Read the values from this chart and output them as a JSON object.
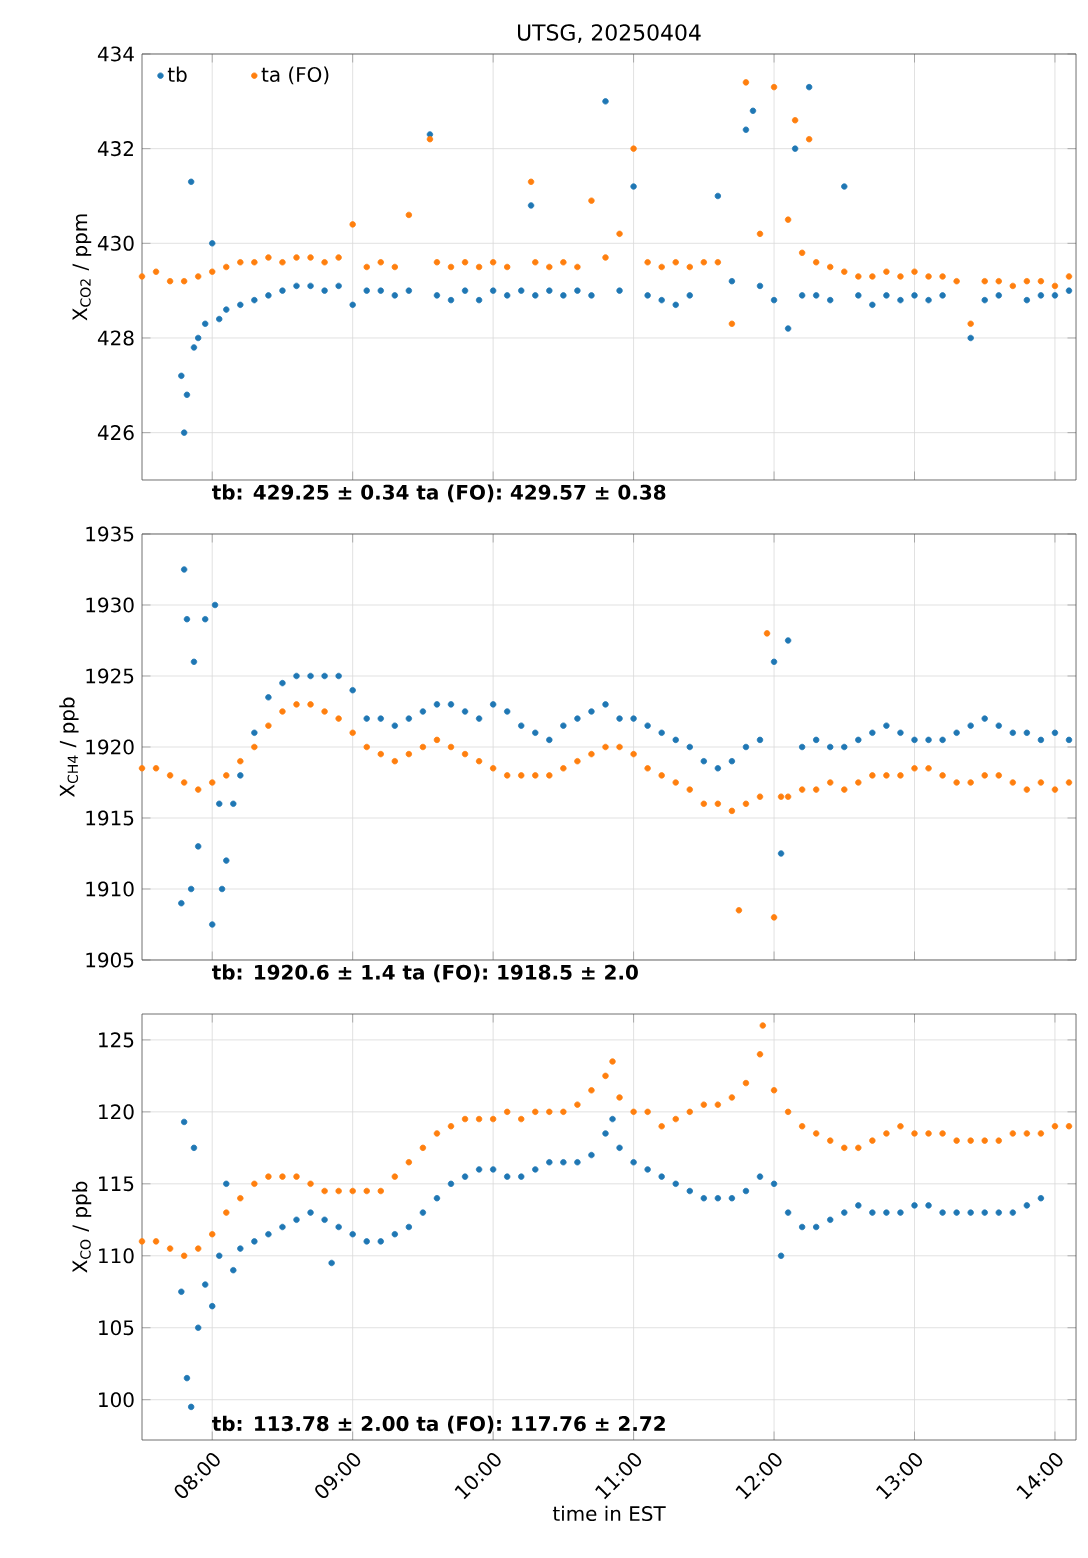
{
  "chart_data": [
    {
      "type": "scatter",
      "title": "UTSG, 20250404",
      "ylabel": "X$_{CO2}$ / ppm",
      "xlim": [
        7.5,
        14.15
      ],
      "ylim": [
        425,
        434
      ],
      "xticks": [
        {
          "value": 8,
          "label": null
        },
        {
          "value": 9,
          "label": null
        },
        {
          "value": 10,
          "label": null
        },
        {
          "value": 11,
          "label": null
        },
        {
          "value": 12,
          "label": null
        },
        {
          "value": 13,
          "label": null
        },
        {
          "value": 14,
          "label": null
        }
      ],
      "yticks": [
        426,
        428,
        430,
        432,
        434
      ],
      "tick_labels": "y",
      "grid": true,
      "legend": "top left",
      "marker": "circle",
      "annotations": [
        "tb: 429.25 ± 0.34   ta (FO): 429.57 ± 0.38"
      ],
      "series": [
        {
          "name": "tb",
          "color": "#1f77b4",
          "x": [
            7.78,
            7.8,
            7.82,
            7.85,
            7.87,
            7.9,
            7.95,
            8.0,
            8.05,
            8.1,
            8.2,
            8.3,
            8.4,
            8.5,
            8.6,
            8.7,
            8.8,
            8.9,
            9.0,
            9.1,
            9.2,
            9.3,
            9.4,
            9.55,
            9.6,
            9.7,
            9.8,
            9.9,
            10.0,
            10.1,
            10.2,
            10.27,
            10.3,
            10.4,
            10.5,
            10.6,
            10.7,
            10.8,
            10.9,
            11.0,
            11.1,
            11.2,
            11.3,
            11.4,
            11.6,
            11.7,
            11.8,
            11.85,
            11.9,
            12.0,
            12.1,
            12.15,
            12.2,
            12.25,
            12.3,
            12.4,
            12.5,
            12.6,
            12.7,
            12.8,
            12.9,
            13.0,
            13.1,
            13.2,
            13.4,
            13.5,
            13.6,
            13.8,
            13.9,
            14.0,
            14.1
          ],
          "values": [
            427.2,
            426.0,
            426.8,
            431.3,
            427.8,
            428.0,
            428.3,
            430.0,
            428.4,
            428.6,
            428.7,
            428.8,
            428.9,
            429.0,
            429.1,
            429.1,
            429.0,
            429.1,
            428.7,
            429.0,
            429.0,
            428.9,
            429.0,
            432.3,
            428.9,
            428.8,
            429.0,
            428.8,
            429.0,
            428.9,
            429.0,
            430.8,
            428.9,
            429.0,
            428.9,
            429.0,
            428.9,
            433.0,
            429.0,
            431.2,
            428.9,
            428.8,
            428.7,
            428.9,
            431.0,
            429.2,
            432.4,
            432.8,
            429.1,
            428.8,
            428.2,
            432.0,
            428.9,
            433.3,
            428.9,
            428.8,
            431.2,
            428.9,
            428.7,
            428.9,
            428.8,
            428.9,
            428.8,
            428.9,
            428.0,
            428.8,
            428.9,
            428.8,
            428.9,
            428.9,
            429.0
          ]
        },
        {
          "name": "ta (FO)",
          "color": "#ff7f0e",
          "x": [
            7.5,
            7.6,
            7.7,
            7.8,
            7.9,
            8.0,
            8.1,
            8.2,
            8.3,
            8.4,
            8.5,
            8.6,
            8.7,
            8.8,
            8.9,
            9.0,
            9.1,
            9.2,
            9.3,
            9.4,
            9.55,
            9.6,
            9.7,
            9.8,
            9.9,
            10.0,
            10.1,
            10.27,
            10.3,
            10.4,
            10.5,
            10.6,
            10.7,
            10.8,
            10.9,
            11.0,
            11.1,
            11.2,
            11.3,
            11.4,
            11.5,
            11.6,
            11.7,
            11.8,
            11.9,
            12.0,
            12.1,
            12.15,
            12.2,
            12.25,
            12.3,
            12.4,
            12.5,
            12.6,
            12.7,
            12.8,
            12.9,
            13.0,
            13.1,
            13.2,
            13.3,
            13.4,
            13.5,
            13.6,
            13.7,
            13.8,
            13.9,
            14.0,
            14.1
          ],
          "values": [
            429.3,
            429.4,
            429.2,
            429.2,
            429.3,
            429.4,
            429.5,
            429.6,
            429.6,
            429.7,
            429.6,
            429.7,
            429.7,
            429.6,
            429.7,
            430.4,
            429.5,
            429.6,
            429.5,
            430.6,
            432.2,
            429.6,
            429.5,
            429.6,
            429.5,
            429.6,
            429.5,
            431.3,
            429.6,
            429.5,
            429.6,
            429.5,
            430.9,
            429.7,
            430.2,
            432.0,
            429.6,
            429.5,
            429.6,
            429.5,
            429.6,
            429.6,
            428.3,
            433.4,
            430.2,
            433.3,
            430.5,
            432.6,
            429.8,
            432.2,
            429.6,
            429.5,
            429.4,
            429.3,
            429.3,
            429.4,
            429.3,
            429.4,
            429.3,
            429.3,
            429.2,
            428.3,
            429.2,
            429.2,
            429.1,
            429.2,
            429.2,
            429.1,
            429.3
          ]
        }
      ]
    },
    {
      "type": "scatter",
      "ylabel": "X$_{CH4}$ / ppb",
      "xlim": [
        7.5,
        14.15
      ],
      "ylim": [
        1905,
        1935
      ],
      "xticks": [
        {
          "value": 8,
          "label": null
        },
        {
          "value": 9,
          "label": null
        },
        {
          "value": 10,
          "label": null
        },
        {
          "value": 11,
          "label": null
        },
        {
          "value": 12,
          "label": null
        },
        {
          "value": 13,
          "label": null
        },
        {
          "value": 14,
          "label": null
        }
      ],
      "yticks": [
        1905,
        1910,
        1915,
        1920,
        1925,
        1930,
        1935
      ],
      "tick_labels": "y",
      "grid": true,
      "marker": "circle",
      "annotations": [
        "tb: 1920.6 ± 1.4   ta (FO): 1918.5 ± 2.0"
      ],
      "series": [
        {
          "color": "#1f77b4",
          "x": [
            7.78,
            7.8,
            7.82,
            7.85,
            7.87,
            7.9,
            7.95,
            8.0,
            8.02,
            8.05,
            8.07,
            8.1,
            8.15,
            8.2,
            8.3,
            8.4,
            8.5,
            8.6,
            8.7,
            8.8,
            8.9,
            9.0,
            9.1,
            9.2,
            9.3,
            9.4,
            9.5,
            9.6,
            9.7,
            9.8,
            9.9,
            10.0,
            10.1,
            10.2,
            10.3,
            10.4,
            10.5,
            10.6,
            10.7,
            10.8,
            10.9,
            11.0,
            11.1,
            11.2,
            11.3,
            11.4,
            11.5,
            11.6,
            11.7,
            11.8,
            11.9,
            12.0,
            12.05,
            12.1,
            12.2,
            12.3,
            12.4,
            12.5,
            12.6,
            12.7,
            12.8,
            12.9,
            13.0,
            13.1,
            13.2,
            13.3,
            13.4,
            13.5,
            13.6,
            13.7,
            13.8,
            13.9,
            14.0,
            14.1
          ],
          "values": [
            1909,
            1932.5,
            1929,
            1910,
            1926,
            1913,
            1929,
            1907.5,
            1930,
            1916,
            1910,
            1912,
            1916,
            1918,
            1921,
            1923.5,
            1924.5,
            1925,
            1925,
            1925,
            1925,
            1924,
            1922,
            1922,
            1921.5,
            1922,
            1922.5,
            1923,
            1923,
            1922.5,
            1922,
            1923,
            1922.5,
            1921.5,
            1921,
            1920.5,
            1921.5,
            1922,
            1922.5,
            1923,
            1922,
            1922,
            1921.5,
            1921,
            1920.5,
            1920,
            1919,
            1918.5,
            1919,
            1920,
            1920.5,
            1926,
            1912.5,
            1927.5,
            1920,
            1920.5,
            1920,
            1920,
            1920.5,
            1921,
            1921.5,
            1921,
            1920.5,
            1920.5,
            1920.5,
            1921,
            1921.5,
            1922,
            1921.5,
            1921,
            1921,
            1920.5,
            1921,
            1920.5
          ]
        },
        {
          "color": "#ff7f0e",
          "x": [
            7.5,
            7.6,
            7.7,
            7.8,
            7.9,
            8.0,
            8.1,
            8.2,
            8.3,
            8.4,
            8.5,
            8.6,
            8.7,
            8.8,
            8.9,
            9.0,
            9.1,
            9.2,
            9.3,
            9.4,
            9.5,
            9.6,
            9.7,
            9.8,
            9.9,
            10.0,
            10.1,
            10.2,
            10.3,
            10.4,
            10.5,
            10.6,
            10.7,
            10.8,
            10.9,
            11.0,
            11.1,
            11.2,
            11.3,
            11.4,
            11.5,
            11.6,
            11.7,
            11.75,
            11.8,
            11.9,
            11.95,
            12.0,
            12.05,
            12.1,
            12.2,
            12.3,
            12.4,
            12.5,
            12.6,
            12.7,
            12.8,
            12.9,
            13.0,
            13.1,
            13.2,
            13.3,
            13.4,
            13.5,
            13.6,
            13.7,
            13.8,
            13.9,
            14.0,
            14.1
          ],
          "values": [
            1918.5,
            1918.5,
            1918,
            1917.5,
            1917,
            1917.5,
            1918,
            1919,
            1920,
            1921.5,
            1922.5,
            1923,
            1923,
            1922.5,
            1922,
            1921,
            1920,
            1919.5,
            1919,
            1919.5,
            1920,
            1920.5,
            1920,
            1919.5,
            1919,
            1918.5,
            1918,
            1918,
            1918,
            1918,
            1918.5,
            1919,
            1919.5,
            1920,
            1920,
            1919.5,
            1918.5,
            1918,
            1917.5,
            1917,
            1916,
            1916,
            1915.5,
            1908.5,
            1916,
            1916.5,
            1928,
            1908,
            1916.5,
            1916.5,
            1917,
            1917,
            1917.5,
            1917,
            1917.5,
            1918,
            1918,
            1918,
            1918.5,
            1918.5,
            1918,
            1917.5,
            1917.5,
            1918,
            1918,
            1917.5,
            1917,
            1917.5,
            1917,
            1917.5
          ]
        }
      ]
    },
    {
      "type": "scatter",
      "xlabel": "time in EST",
      "ylabel": "X$_{CO}$ / ppb",
      "xlim": [
        7.5,
        14.15
      ],
      "ylim": [
        97.2,
        126.8
      ],
      "xticks": [
        {
          "value": 8,
          "label": "08:00"
        },
        {
          "value": 9,
          "label": "09:00"
        },
        {
          "value": 10,
          "label": "10:00"
        },
        {
          "value": 11,
          "label": "11:00"
        },
        {
          "value": 12,
          "label": "12:00"
        },
        {
          "value": 13,
          "label": "13:00"
        },
        {
          "value": 14,
          "label": "14:00"
        }
      ],
      "yticks": [
        100,
        105,
        110,
        115,
        120,
        125
      ],
      "grid": true,
      "marker": "circle",
      "annotations": [
        "tb: 113.78 ± 2.00   ta (FO): 117.76 ± 2.72"
      ],
      "series": [
        {
          "color": "#1f77b4",
          "x": [
            7.78,
            7.8,
            7.82,
            7.85,
            7.87,
            7.9,
            7.95,
            8.0,
            8.05,
            8.1,
            8.15,
            8.2,
            8.3,
            8.4,
            8.5,
            8.6,
            8.7,
            8.8,
            8.85,
            8.9,
            9.0,
            9.1,
            9.2,
            9.3,
            9.4,
            9.5,
            9.6,
            9.7,
            9.8,
            9.9,
            10.0,
            10.1,
            10.2,
            10.3,
            10.4,
            10.5,
            10.6,
            10.7,
            10.8,
            10.85,
            10.9,
            11.0,
            11.1,
            11.2,
            11.3,
            11.4,
            11.5,
            11.6,
            11.7,
            11.8,
            11.9,
            12.0,
            12.05,
            12.1,
            12.2,
            12.3,
            12.4,
            12.5,
            12.6,
            12.7,
            12.8,
            12.9,
            13.0,
            13.1,
            13.2,
            13.3,
            13.4,
            13.5,
            13.6,
            13.7,
            13.8,
            13.9
          ],
          "values": [
            107.5,
            119.3,
            101.5,
            99.5,
            117.5,
            105,
            108,
            106.5,
            110,
            115,
            109,
            110.5,
            111,
            111.5,
            112,
            112.5,
            113,
            112.5,
            109.5,
            112,
            111.5,
            111,
            111,
            111.5,
            112,
            113,
            114,
            115,
            115.5,
            116,
            116,
            115.5,
            115.5,
            116,
            116.5,
            116.5,
            116.5,
            117,
            118.5,
            119.5,
            117.5,
            116.5,
            116,
            115.5,
            115,
            114.5,
            114,
            114,
            114,
            114.5,
            115.5,
            115,
            110,
            113,
            112,
            112,
            112.5,
            113,
            113.5,
            113,
            113,
            113,
            113.5,
            113.5,
            113,
            113,
            113,
            113,
            113,
            113,
            113.5,
            114
          ]
        },
        {
          "color": "#ff7f0e",
          "x": [
            7.5,
            7.6,
            7.7,
            7.8,
            7.9,
            8.0,
            8.1,
            8.2,
            8.3,
            8.4,
            8.5,
            8.6,
            8.7,
            8.8,
            8.9,
            9.0,
            9.1,
            9.2,
            9.3,
            9.4,
            9.5,
            9.6,
            9.7,
            9.8,
            9.9,
            10.0,
            10.1,
            10.2,
            10.3,
            10.4,
            10.5,
            10.6,
            10.7,
            10.8,
            10.85,
            10.9,
            11.0,
            11.1,
            11.2,
            11.3,
            11.4,
            11.5,
            11.6,
            11.7,
            11.8,
            11.9,
            11.92,
            12.0,
            12.1,
            12.2,
            12.3,
            12.4,
            12.5,
            12.6,
            12.7,
            12.8,
            12.9,
            13.0,
            13.1,
            13.2,
            13.3,
            13.4,
            13.5,
            13.6,
            13.7,
            13.8,
            13.9,
            14.0,
            14.1
          ],
          "values": [
            111,
            111,
            110.5,
            110,
            110.5,
            111.5,
            113,
            114,
            115,
            115.5,
            115.5,
            115.5,
            115,
            114.5,
            114.5,
            114.5,
            114.5,
            114.5,
            115.5,
            116.5,
            117.5,
            118.5,
            119,
            119.5,
            119.5,
            119.5,
            120,
            119.5,
            120,
            120,
            120,
            120.5,
            121.5,
            122.5,
            123.5,
            121,
            120,
            120,
            119,
            119.5,
            120,
            120.5,
            120.5,
            121,
            122,
            124,
            126,
            121.5,
            120,
            119,
            118.5,
            118,
            117.5,
            117.5,
            118,
            118.5,
            119,
            118.5,
            118.5,
            118.5,
            118,
            118,
            118,
            118,
            118.5,
            118.5,
            118.5,
            119,
            119
          ]
        }
      ]
    }
  ]
}
